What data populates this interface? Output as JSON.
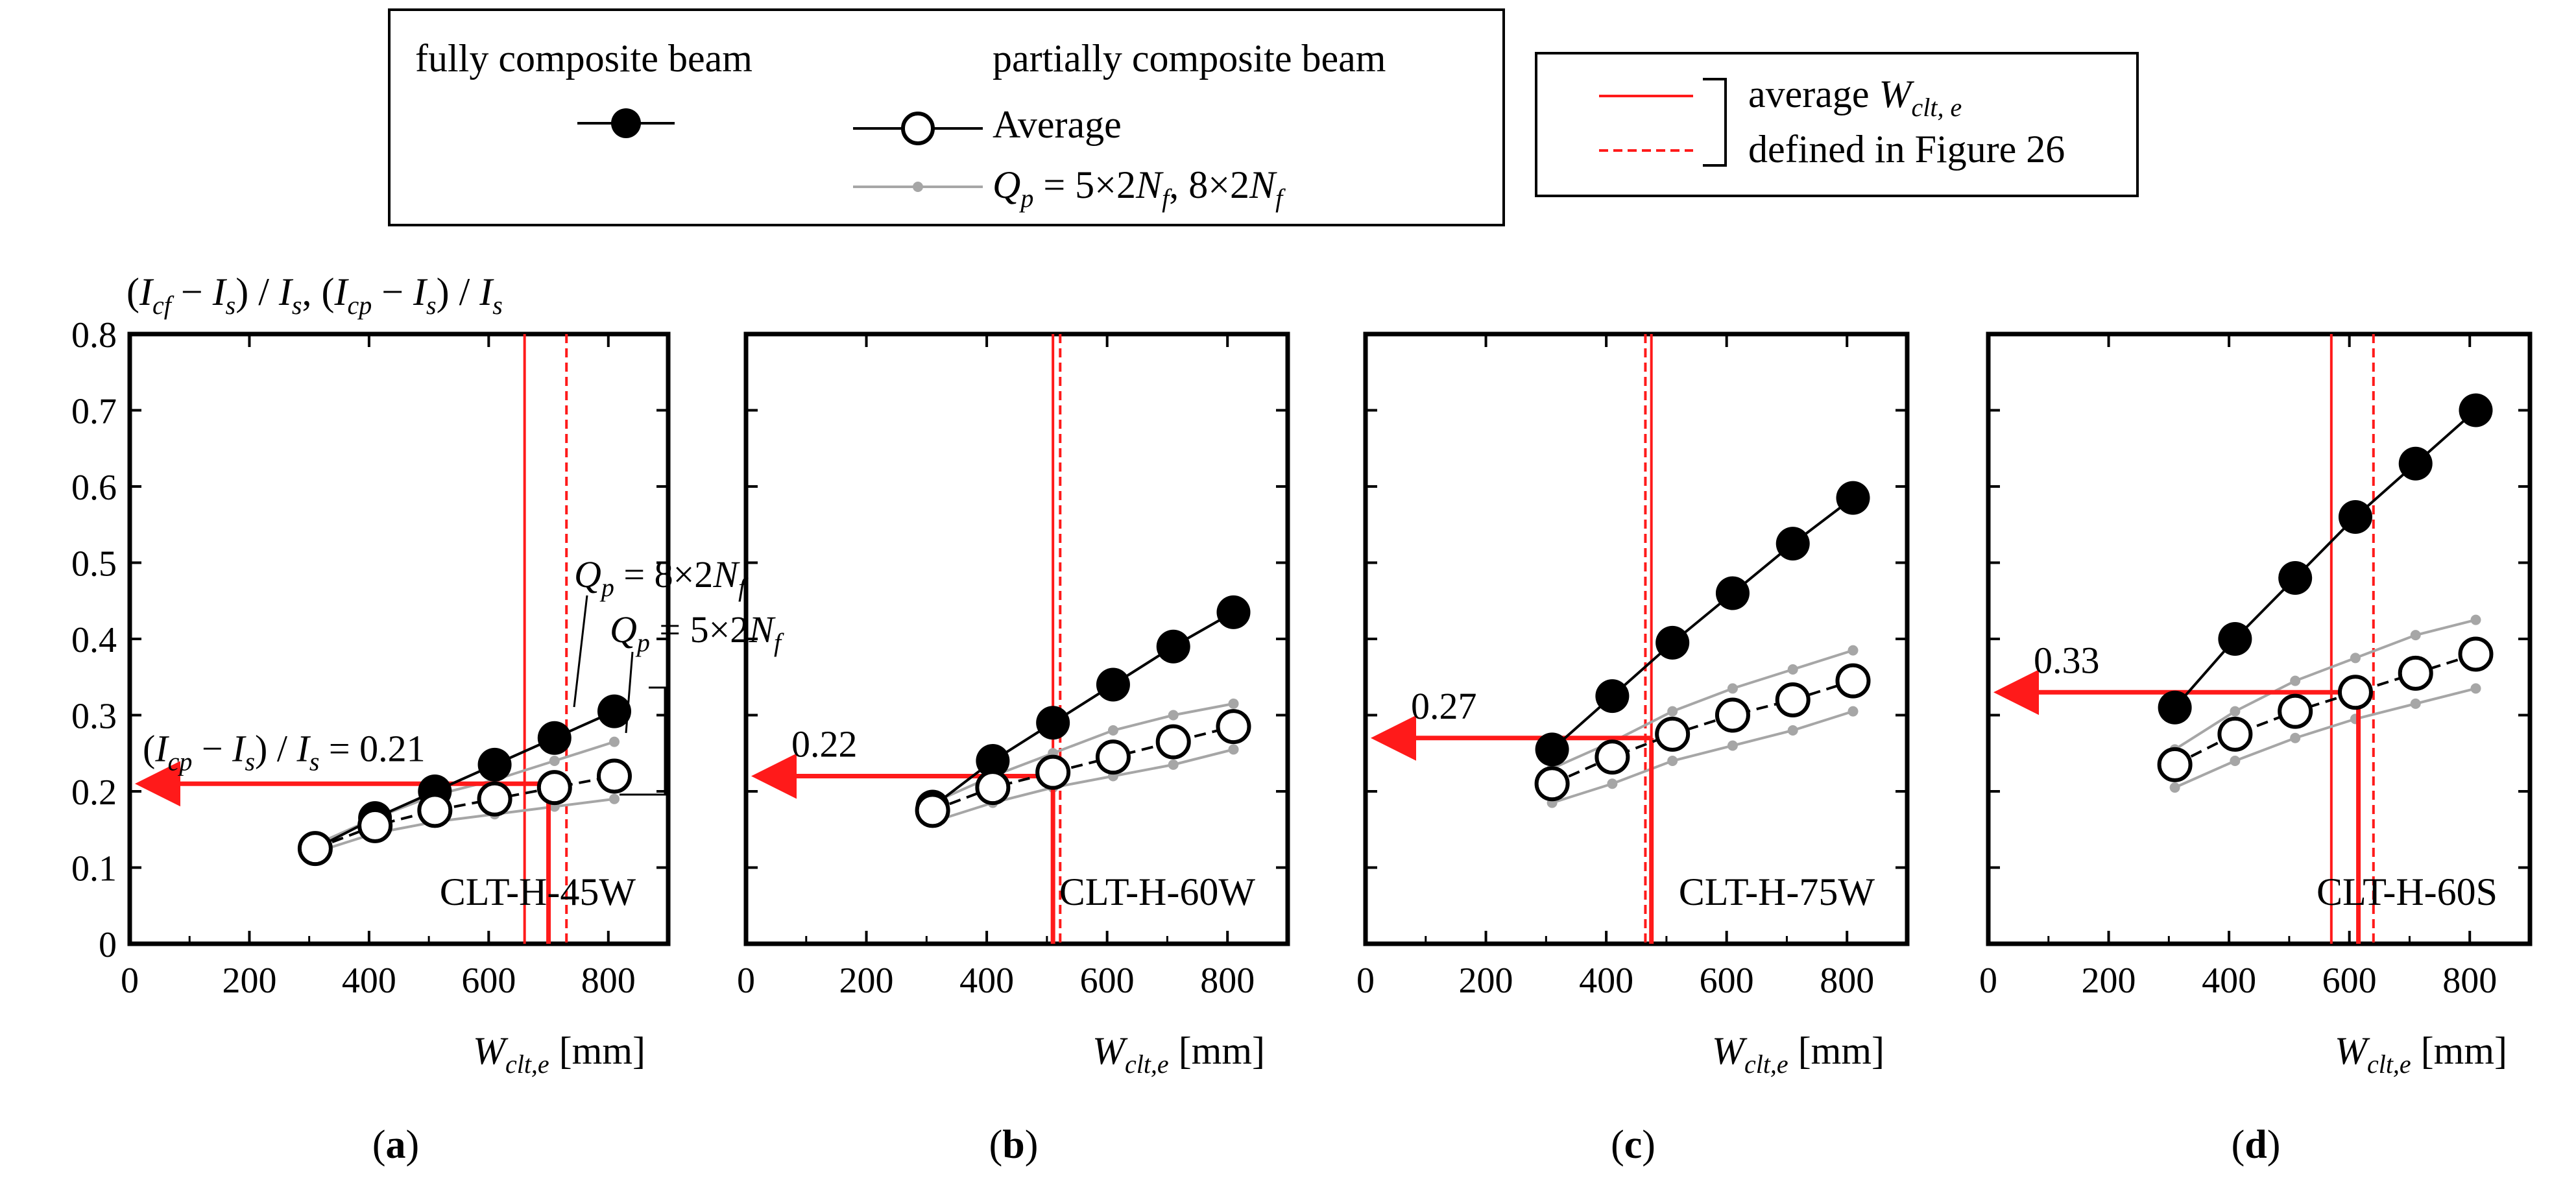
{
  "legend": {
    "fully_label": "fully composite beam",
    "partial_label": "partially composite beam",
    "average_label": "Average",
    "qp_label": "= 5×2",
    "qp_label2": ", 8×2",
    "red_line1": "average",
    "red_line2": "defined in Figure 26"
  },
  "y_axis_label": "(I_cf − I_s) / I_s, (I_cp − I_s) / I_s",
  "colors": {
    "red": "#ff1a1a",
    "gray": "#a6a6a6",
    "black": "#000000"
  },
  "chart_data": [
    {
      "type": "line",
      "panel_label": "(a)",
      "name": "CLT-H-45W",
      "xlabel": "W_clt,e [mm]",
      "xlim": [
        0,
        900
      ],
      "ylim": [
        0,
        0.8
      ],
      "xticks": [
        "0",
        "200",
        "400",
        "600",
        "800"
      ],
      "yticks": [
        "0",
        "0.1",
        "0.2",
        "0.3",
        "0.4",
        "0.5",
        "0.6",
        "0.7",
        "0.8"
      ],
      "x": [
        310,
        410,
        510,
        610,
        710,
        810
      ],
      "series": [
        {
          "name": "fully composite beam",
          "values": [
            0.125,
            0.165,
            0.2,
            0.235,
            0.27,
            0.305
          ]
        },
        {
          "name": "partially composite beam Average",
          "values": [
            0.125,
            0.155,
            0.175,
            0.19,
            0.205,
            0.22
          ]
        },
        {
          "name": "Qp = 8×2Nf",
          "values": [
            0.13,
            0.165,
            0.195,
            0.215,
            0.24,
            0.265
          ]
        },
        {
          "name": "Qp = 5×2Nf",
          "values": [
            0.12,
            0.145,
            0.16,
            0.17,
            0.18,
            0.19
          ]
        }
      ],
      "avg_solid": 660,
      "avg_dashed": 730,
      "arrow_x": 700,
      "arrow_y": 0.21,
      "annotation": "(I_cp − I_s) / I_s = 0.21",
      "annotation_value": "0.21",
      "callout_upper": "Q_p = 8×2N_f",
      "callout_lower": "Q_p = 5×2N_f"
    },
    {
      "type": "line",
      "panel_label": "(b)",
      "name": "CLT-H-60W",
      "xlabel": "W_clt,e [mm]",
      "xlim": [
        0,
        900
      ],
      "ylim": [
        0,
        0.8
      ],
      "xticks": [
        "0",
        "200",
        "400",
        "600",
        "800"
      ],
      "yticks": [
        "0",
        "0.1",
        "0.2",
        "0.3",
        "0.4",
        "0.5",
        "0.6",
        "0.7",
        "0.8"
      ],
      "x": [
        310,
        410,
        510,
        610,
        710,
        810
      ],
      "series": [
        {
          "name": "fully composite beam",
          "values": [
            0.18,
            0.24,
            0.29,
            0.34,
            0.39,
            0.435
          ]
        },
        {
          "name": "partially composite beam Average",
          "values": [
            0.175,
            0.205,
            0.225,
            0.245,
            0.265,
            0.285
          ]
        },
        {
          "name": "Qp = 8×2Nf",
          "values": [
            0.185,
            0.22,
            0.25,
            0.28,
            0.3,
            0.315
          ]
        },
        {
          "name": "Qp = 5×2Nf",
          "values": [
            0.16,
            0.185,
            0.205,
            0.22,
            0.235,
            0.255
          ]
        }
      ],
      "avg_solid": 510,
      "avg_dashed": 522,
      "arrow_x": 510,
      "arrow_y": 0.22,
      "annotation_value": "0.22"
    },
    {
      "type": "line",
      "panel_label": "(c)",
      "name": "CLT-H-75W",
      "xlabel": "W_clt,e [mm]",
      "xlim": [
        0,
        900
      ],
      "ylim": [
        0,
        0.8
      ],
      "xticks": [
        "0",
        "200",
        "400",
        "600",
        "800"
      ],
      "yticks": [
        "0",
        "0.1",
        "0.2",
        "0.3",
        "0.4",
        "0.5",
        "0.6",
        "0.7",
        "0.8"
      ],
      "x": [
        310,
        410,
        510,
        610,
        710,
        810
      ],
      "series": [
        {
          "name": "fully composite beam",
          "values": [
            0.255,
            0.325,
            0.395,
            0.46,
            0.525,
            0.585
          ]
        },
        {
          "name": "partially composite beam Average",
          "values": [
            0.21,
            0.245,
            0.275,
            0.3,
            0.32,
            0.345
          ]
        },
        {
          "name": "Qp = 8×2Nf",
          "values": [
            0.23,
            0.265,
            0.305,
            0.335,
            0.36,
            0.385
          ]
        },
        {
          "name": "Qp = 5×2Nf",
          "values": [
            0.185,
            0.21,
            0.24,
            0.26,
            0.28,
            0.305
          ]
        }
      ],
      "avg_solid": 475,
      "avg_dashed": 465,
      "arrow_x": 475,
      "arrow_y": 0.27,
      "annotation_value": "0.27"
    },
    {
      "type": "line",
      "panel_label": "(d)",
      "name": "CLT-H-60S",
      "xlabel": "W_clt,e [mm]",
      "xlim": [
        0,
        900
      ],
      "ylim": [
        0,
        0.8
      ],
      "xticks": [
        "0",
        "200",
        "400",
        "600",
        "800"
      ],
      "yticks": [
        "0",
        "0.1",
        "0.2",
        "0.3",
        "0.4",
        "0.5",
        "0.6",
        "0.7",
        "0.8"
      ],
      "x": [
        310,
        410,
        510,
        610,
        710,
        810
      ],
      "series": [
        {
          "name": "fully composite beam",
          "values": [
            0.31,
            0.4,
            0.48,
            0.56,
            0.63,
            0.7
          ]
        },
        {
          "name": "partially composite beam Average",
          "values": [
            0.235,
            0.275,
            0.305,
            0.33,
            0.355,
            0.38
          ]
        },
        {
          "name": "Qp = 8×2Nf",
          "values": [
            0.255,
            0.305,
            0.345,
            0.375,
            0.405,
            0.425
          ]
        },
        {
          "name": "Qp = 5×2Nf",
          "values": [
            0.205,
            0.24,
            0.27,
            0.295,
            0.315,
            0.335
          ]
        }
      ],
      "avg_solid": 570,
      "avg_dashed": 640,
      "arrow_x": 615,
      "arrow_y": 0.33,
      "annotation_value": "0.33"
    }
  ]
}
